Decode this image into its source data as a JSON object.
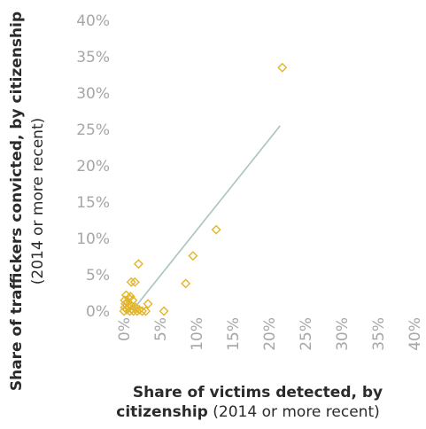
{
  "chart_data": {
    "type": "scatter",
    "xlabel_bold_1": "Share of victims detected, by",
    "xlabel_bold_2": "citizenship",
    "xlabel_light": " (2014 or more recent)",
    "ylabel_bold": "Share of traffickers convicted, by citizenship",
    "ylabel_light": "(2014 or more recent)",
    "xlim": [
      0,
      40
    ],
    "ylim": [
      0,
      40
    ],
    "x_ticks": [
      "0%",
      "5%",
      "10%",
      "15%",
      "20%",
      "25%",
      "30%",
      "35%",
      "40%"
    ],
    "y_ticks": [
      "0%",
      "5%",
      "10%",
      "15%",
      "20%",
      "25%",
      "30%",
      "35%",
      "40%"
    ],
    "tick_values": [
      0,
      5,
      10,
      15,
      20,
      25,
      30,
      35,
      40
    ],
    "grid": false,
    "legend": "none",
    "colors": {
      "points": "#e3b52a",
      "trend": "#a9c3bf",
      "ticks": "#a6a6a6",
      "labels": "#2b2b2b"
    },
    "points": [
      {
        "x": 0.0,
        "y": 0.0
      },
      {
        "x": 0.1,
        "y": 0.5
      },
      {
        "x": 0.2,
        "y": 1.0
      },
      {
        "x": 0.1,
        "y": 1.5
      },
      {
        "x": 0.3,
        "y": 2.2
      },
      {
        "x": 0.4,
        "y": 0.2
      },
      {
        "x": 0.5,
        "y": 1.2
      },
      {
        "x": 0.6,
        "y": 0.6
      },
      {
        "x": 0.7,
        "y": 1.8
      },
      {
        "x": 0.8,
        "y": 0.0
      },
      {
        "x": 0.9,
        "y": 2.0
      },
      {
        "x": 1.0,
        "y": 4.0
      },
      {
        "x": 1.0,
        "y": 0.8
      },
      {
        "x": 1.1,
        "y": 0.3
      },
      {
        "x": 1.2,
        "y": 1.5
      },
      {
        "x": 1.3,
        "y": 0.0
      },
      {
        "x": 1.5,
        "y": 4.0
      },
      {
        "x": 1.6,
        "y": 0.5
      },
      {
        "x": 1.8,
        "y": 0.0
      },
      {
        "x": 2.0,
        "y": 6.5
      },
      {
        "x": 2.1,
        "y": 0.2
      },
      {
        "x": 2.5,
        "y": 0.0
      },
      {
        "x": 3.0,
        "y": 0.0
      },
      {
        "x": 3.3,
        "y": 1.0
      },
      {
        "x": 5.5,
        "y": 0.0
      },
      {
        "x": 8.5,
        "y": 3.8
      },
      {
        "x": 9.5,
        "y": 7.6
      },
      {
        "x": 12.7,
        "y": 11.2
      },
      {
        "x": 21.8,
        "y": 33.5
      }
    ],
    "trendline": [
      {
        "x": 1.5,
        "y": 0.5
      },
      {
        "x": 21.5,
        "y": 25.5
      }
    ]
  }
}
